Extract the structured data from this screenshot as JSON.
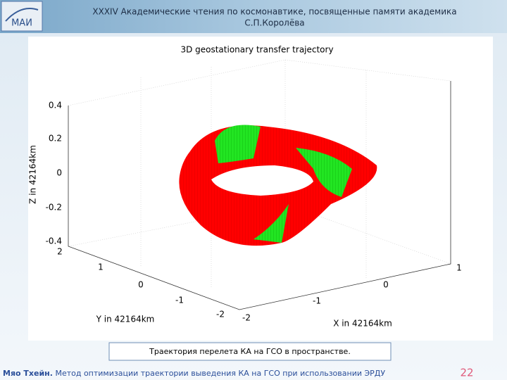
{
  "logo": {
    "text": "МАИ"
  },
  "header": {
    "title_lines": [
      "XXXIV Академические чтения по космонавтике, посвященные памяти академика",
      "С.П.Королёва"
    ]
  },
  "plot": {
    "title": "3D geostationary transfer trajectory",
    "z_label": "Z in 42164km",
    "x_label": "X in 42164km",
    "y_label": "Y in 42164km",
    "z_ticks": [
      "0.4",
      "0.2",
      "0",
      "-0.2",
      "-0.4"
    ],
    "y_ticks": [
      "2",
      "1",
      "0",
      "-1",
      "-2"
    ],
    "x_ticks": [
      "-2",
      "-1",
      "0",
      "1"
    ]
  },
  "caption": "Траектория перелета КА на ГСО в пространстве.",
  "footer": {
    "author": "Мяо Тхейн.",
    "text": "Метод оптимизации траектории выведения КА на ГСО при использовании ЭРДУ",
    "page": "22"
  }
}
